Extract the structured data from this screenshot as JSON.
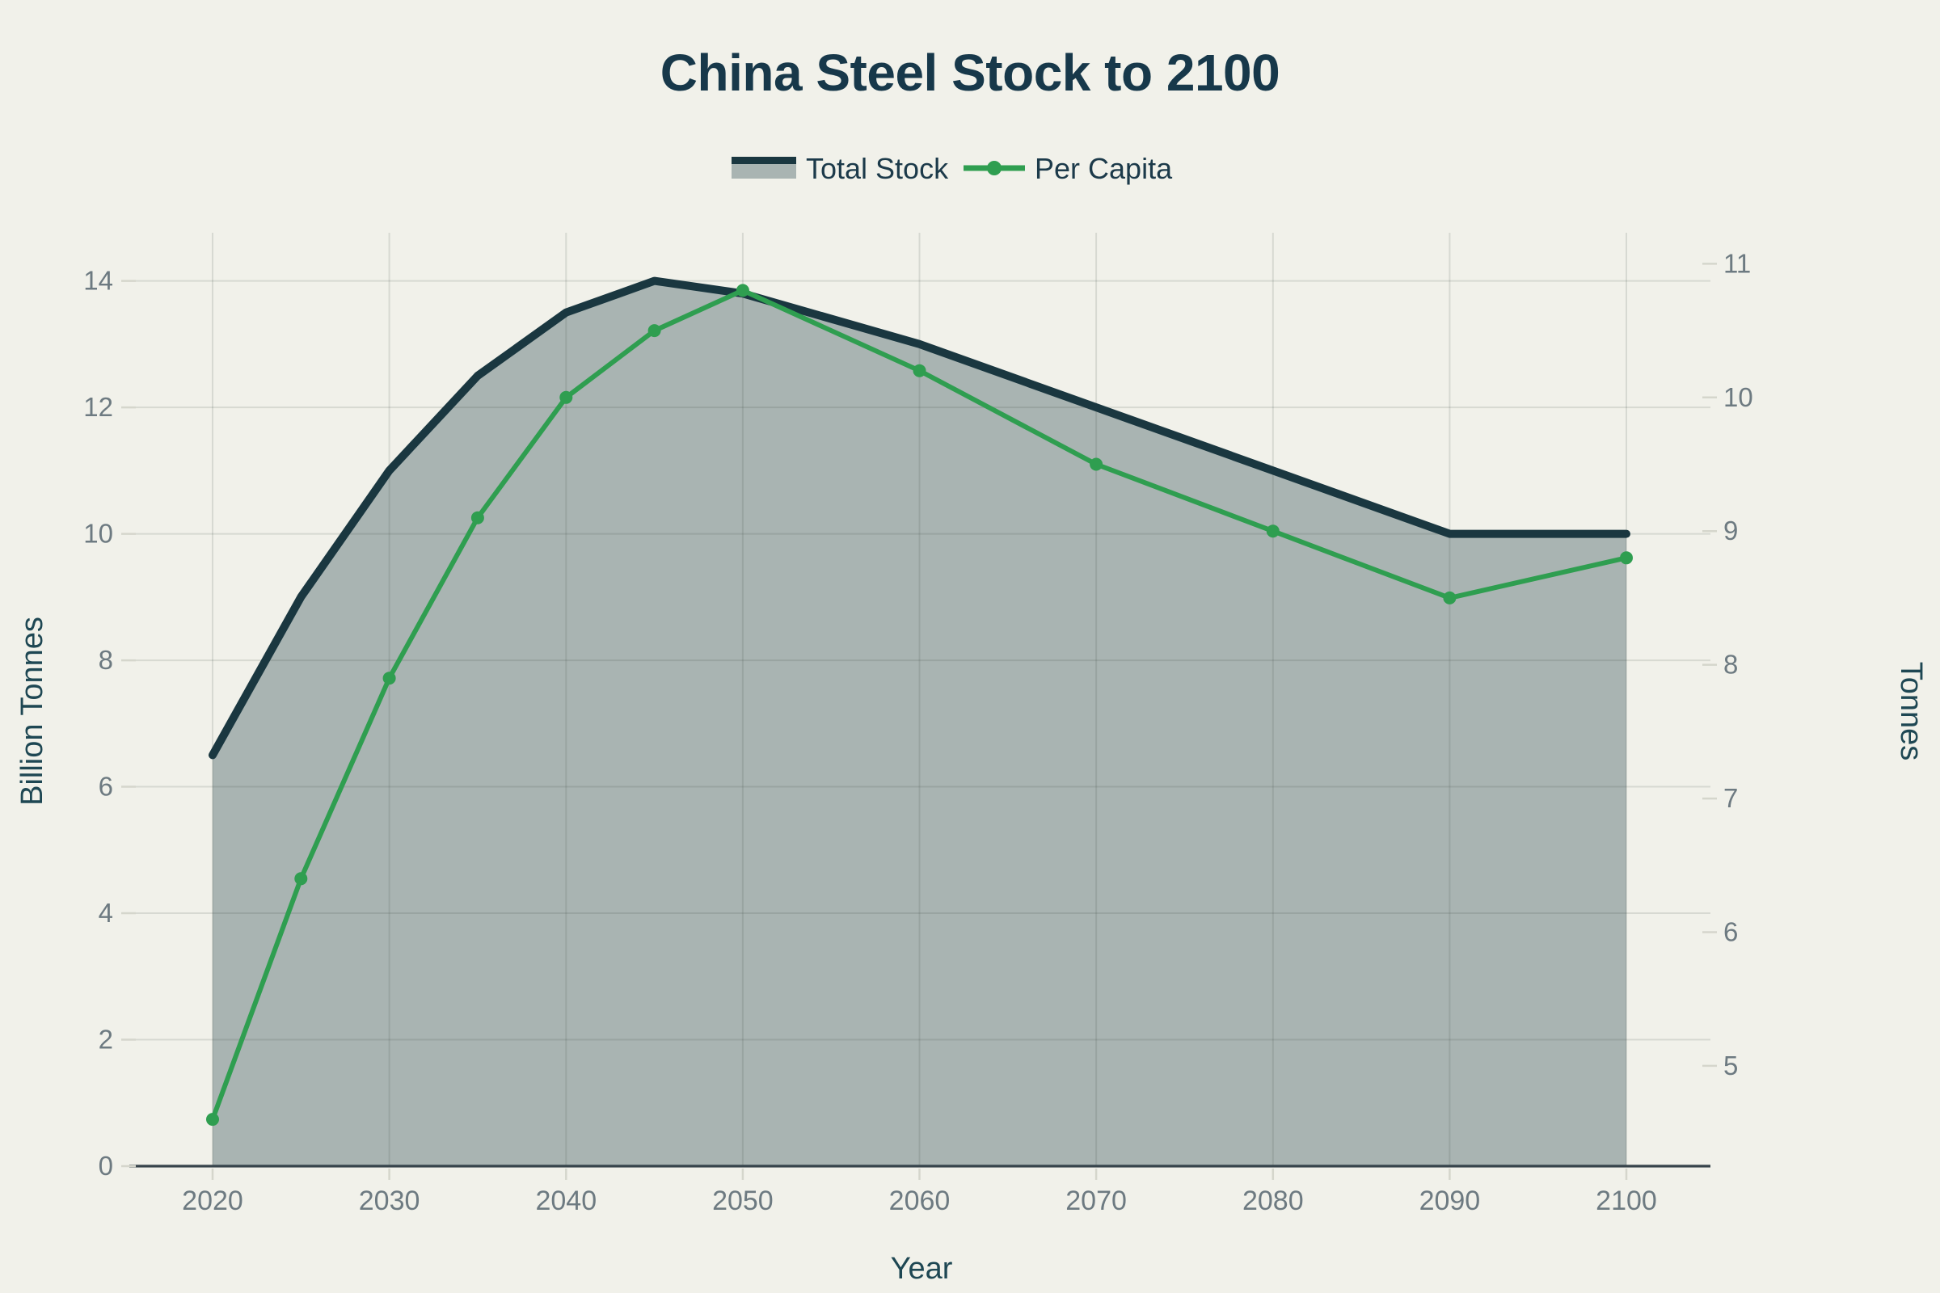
{
  "page": {
    "background": "#f1f1ea"
  },
  "header": {
    "title": "China Steel Stock to 2100"
  },
  "legend": {
    "items": [
      {
        "label": "Total Stock",
        "swatch": "area-swatch"
      },
      {
        "label": "Per Capita",
        "swatch": "line-marker-swatch"
      }
    ]
  },
  "chart_data": {
    "type": "area",
    "title": "China Steel Stock to 2100",
    "xlabel": "Year",
    "ylabel_left": "Billion Tonnes",
    "ylabel_right": "Tonnes",
    "x": [
      2020,
      2025,
      2030,
      2035,
      2040,
      2045,
      2050,
      2060,
      2070,
      2080,
      2090,
      2100
    ],
    "series": [
      {
        "name": "Total Stock",
        "axis": "left",
        "style": "area",
        "color": "#1a3740",
        "fill": "#a9b4b2",
        "values": [
          6.5,
          9.0,
          11.0,
          12.5,
          13.5,
          14.0,
          13.8,
          13.0,
          12.0,
          11.0,
          10.0,
          10.0
        ]
      },
      {
        "name": "Per Capita",
        "axis": "right",
        "style": "line+markers",
        "color": "#2f9e50",
        "values": [
          4.6,
          6.4,
          7.9,
          9.1,
          10.0,
          10.5,
          10.8,
          10.2,
          9.5,
          9.0,
          8.5,
          8.8
        ]
      }
    ],
    "x_ticks": [
      2020,
      2030,
      2040,
      2050,
      2060,
      2070,
      2080,
      2090,
      2100
    ],
    "y_ticks_left": [
      0,
      2,
      4,
      6,
      8,
      10,
      12,
      14
    ],
    "y_ticks_right": [
      5,
      6,
      7,
      8,
      9,
      10,
      11
    ],
    "x_range": [
      2020,
      2100
    ],
    "y_range_left": [
      0,
      14.8
    ],
    "y_range_right": [
      4.25,
      11.25
    ],
    "grid": true,
    "legend_position": "top-center"
  },
  "colors": {
    "background": "#f1f1ea",
    "grid_rgba": "rgba(60,70,65,0.14)",
    "axis_line": "#37444b",
    "tick_mark": "#d5d6cc",
    "tick_label": "#6d7a81",
    "axis_title": "#1e4753",
    "title": "#17384a",
    "total_line": "#1a3740",
    "total_fill": "#a9b4b2",
    "capita_line": "#2f9e50"
  }
}
